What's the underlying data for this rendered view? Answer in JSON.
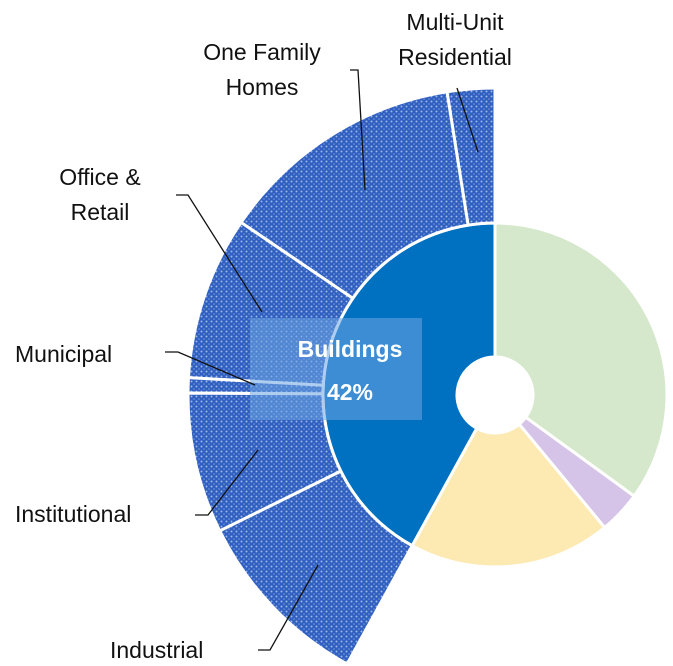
{
  "chart_data": {
    "type": "sunburst",
    "inner": {
      "labels": [
        null,
        null,
        null,
        "Buildings"
      ],
      "values": [
        35,
        4,
        19,
        42
      ],
      "value_labels": [
        null,
        null,
        null,
        "42%"
      ],
      "colors": [
        "#d5e8cb",
        "#d6c3e8",
        "#fde9b2",
        "#0070c0"
      ]
    },
    "outer": {
      "labels": [
        "Multi-Unit\nResidential",
        "One Family\nHomes",
        "Office &\nRetail",
        "Municipal",
        "Institutional",
        "Industrial"
      ],
      "values": [
        2.5,
        13,
        8.6,
        0.8,
        7.4,
        9.7
      ],
      "color": "#2f5fc0"
    }
  }
}
